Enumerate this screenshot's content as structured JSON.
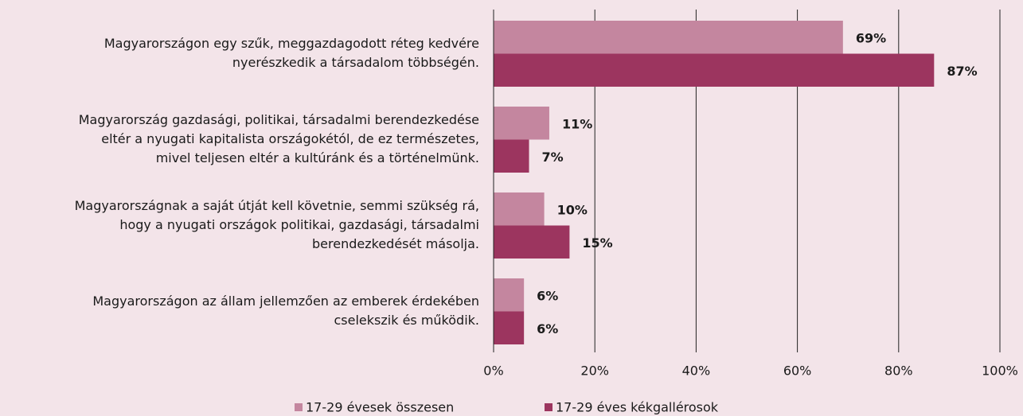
{
  "chart_data": {
    "type": "bar",
    "orientation": "horizontal",
    "categories": [
      [
        "Magyarországon egy szűk, meggazdagodott réteg kedvére",
        "nyerészkedik a társadalom többségén."
      ],
      [
        "Magyarország gazdasági, politikai, társadalmi berendezkedése",
        "eltér a nyugati kapitalista országokétól, de ez természetes,",
        "mivel teljesen eltér a kultúránk és a történelmünk."
      ],
      [
        "Magyarországnak a saját útját kell követnie, semmi szükség rá,",
        "hogy a nyugati országok politikai, gazdasági, társadalmi",
        "berendezkedését másolja."
      ],
      [
        "Magyarországon az állam jellemzően az emberek érdekében",
        "cselekszik és működik."
      ]
    ],
    "series": [
      {
        "name": "17-29 évesek összesen",
        "color": "#c4869f",
        "values": [
          69,
          11,
          10,
          6
        ],
        "value_labels": [
          "69%",
          "11%",
          "10%",
          "6%"
        ]
      },
      {
        "name": "17-29 éves kékgallérosok",
        "color": "#9c355f",
        "values": [
          87,
          7,
          15,
          6
        ],
        "value_labels": [
          "87%",
          "7%",
          "15%",
          "6%"
        ]
      }
    ],
    "xlim": [
      0,
      100
    ],
    "xticks": [
      {
        "value": 0,
        "label": "0%"
      },
      {
        "value": 20,
        "label": "20%"
      },
      {
        "value": 40,
        "label": "40%"
      },
      {
        "value": 60,
        "label": "60%"
      },
      {
        "value": 80,
        "label": "80%"
      },
      {
        "value": 100,
        "label": "100%"
      }
    ],
    "grid": true,
    "legend": "bottom"
  }
}
